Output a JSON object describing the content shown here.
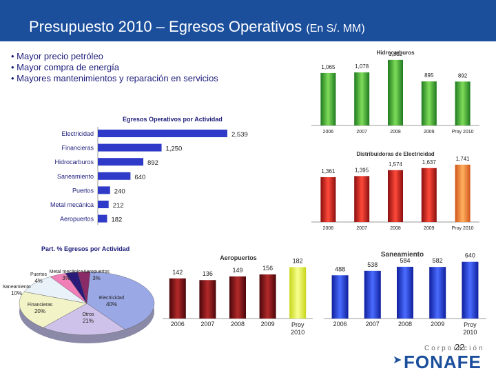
{
  "header": {
    "title": "Presupuesto 2010 – Egresos Operativos",
    "subtitle": "(En S/. MM)"
  },
  "bullets": [
    "Mayor precio petróleo",
    "Mayor compra de energía",
    "Mayores mantenimientos y reparación en servicios"
  ],
  "slide_number": "22",
  "logo": {
    "corp": "Corporación",
    "name": "FONAFE"
  },
  "colors": {
    "header": "#1b4f9c",
    "hbar": "#2f3ac8",
    "green": "#3aa33a",
    "red": "#c81e1e",
    "maroon": "#7a0f14",
    "blue": "#1f3fd6",
    "highlight": "#f29a3a",
    "yellow": "#eaf23a"
  },
  "chart_data": [
    {
      "type": "bar",
      "orientation": "horizontal",
      "title": "Egresos Operativos por Actividad",
      "categories": [
        "Electricidad",
        "Financieras",
        "Hidrocarburos",
        "Saneamiento",
        "Puertos",
        "Metal mecánica",
        "Aeropuertos"
      ],
      "values": [
        2539,
        1250,
        892,
        640,
        240,
        212,
        182
      ],
      "value_labels": [
        "2,539",
        "1,250",
        "892",
        "640",
        "240",
        "212",
        "182"
      ],
      "xlim": [
        0,
        2539
      ]
    },
    {
      "type": "bar",
      "title": "Hidrocarburos",
      "categories": [
        "2006",
        "2007",
        "2008",
        "2009",
        "Proy 2010"
      ],
      "values": [
        1065,
        1078,
        1332,
        895,
        892
      ],
      "value_labels": [
        "1,065",
        "1,078",
        "1,332",
        "895",
        "892"
      ],
      "highlight": "Proy 2010",
      "ylim": [
        0,
        1400
      ]
    },
    {
      "type": "bar",
      "title": "Distribuidoras de Electricidad",
      "categories": [
        "2006",
        "2007",
        "2008",
        "2009",
        "Proy 2010"
      ],
      "values": [
        1361,
        1395,
        1574,
        1637,
        1741
      ],
      "value_labels": [
        "1,361",
        "1,395",
        "1,574",
        "1,637",
        "1,741"
      ],
      "highlight": "Proy 2010",
      "ylim": [
        0,
        1800
      ]
    },
    {
      "type": "pie",
      "title": "Part. % Egresos por Actividad",
      "slices": [
        {
          "label": "Electricidad",
          "value": 40,
          "text": "40%",
          "color": "#9aa8e6"
        },
        {
          "label": "Otros",
          "value": 21,
          "text": "21%",
          "color": "#cfc2ea"
        },
        {
          "label": "Financieras",
          "value": 20,
          "text": "20%",
          "color": "#f3f3c8"
        },
        {
          "label": "Saneamiento",
          "value": 10,
          "text": "10%",
          "color": "#e8f2f8"
        },
        {
          "label": "Puertos",
          "value": 4,
          "text": "4%",
          "color": "#f07fb8"
        },
        {
          "label": "Metal mecánica",
          "value": 3,
          "text": "3%",
          "color": "#2a1a7a"
        },
        {
          "label": "Aeropuertos",
          "value": 3,
          "text": "3%",
          "color": "#8a2a66"
        }
      ]
    },
    {
      "type": "bar",
      "title": "Aeropuertos",
      "categories": [
        "2006",
        "2007",
        "2008",
        "2009",
        "Proy 2010"
      ],
      "values": [
        142,
        136,
        149,
        156,
        182
      ],
      "value_labels": [
        "142",
        "136",
        "149",
        "156",
        "182"
      ],
      "highlight": "Proy 2010",
      "ylim": [
        0,
        200
      ]
    },
    {
      "type": "bar",
      "title": "Saneamiento",
      "categories": [
        "2006",
        "2007",
        "2008",
        "2009",
        "Proy 2010"
      ],
      "values": [
        488,
        538,
        584,
        582,
        640
      ],
      "value_labels": [
        "488",
        "538",
        "584",
        "582",
        "640"
      ],
      "highlight": "Proy 2010",
      "ylim": [
        0,
        700
      ]
    }
  ]
}
